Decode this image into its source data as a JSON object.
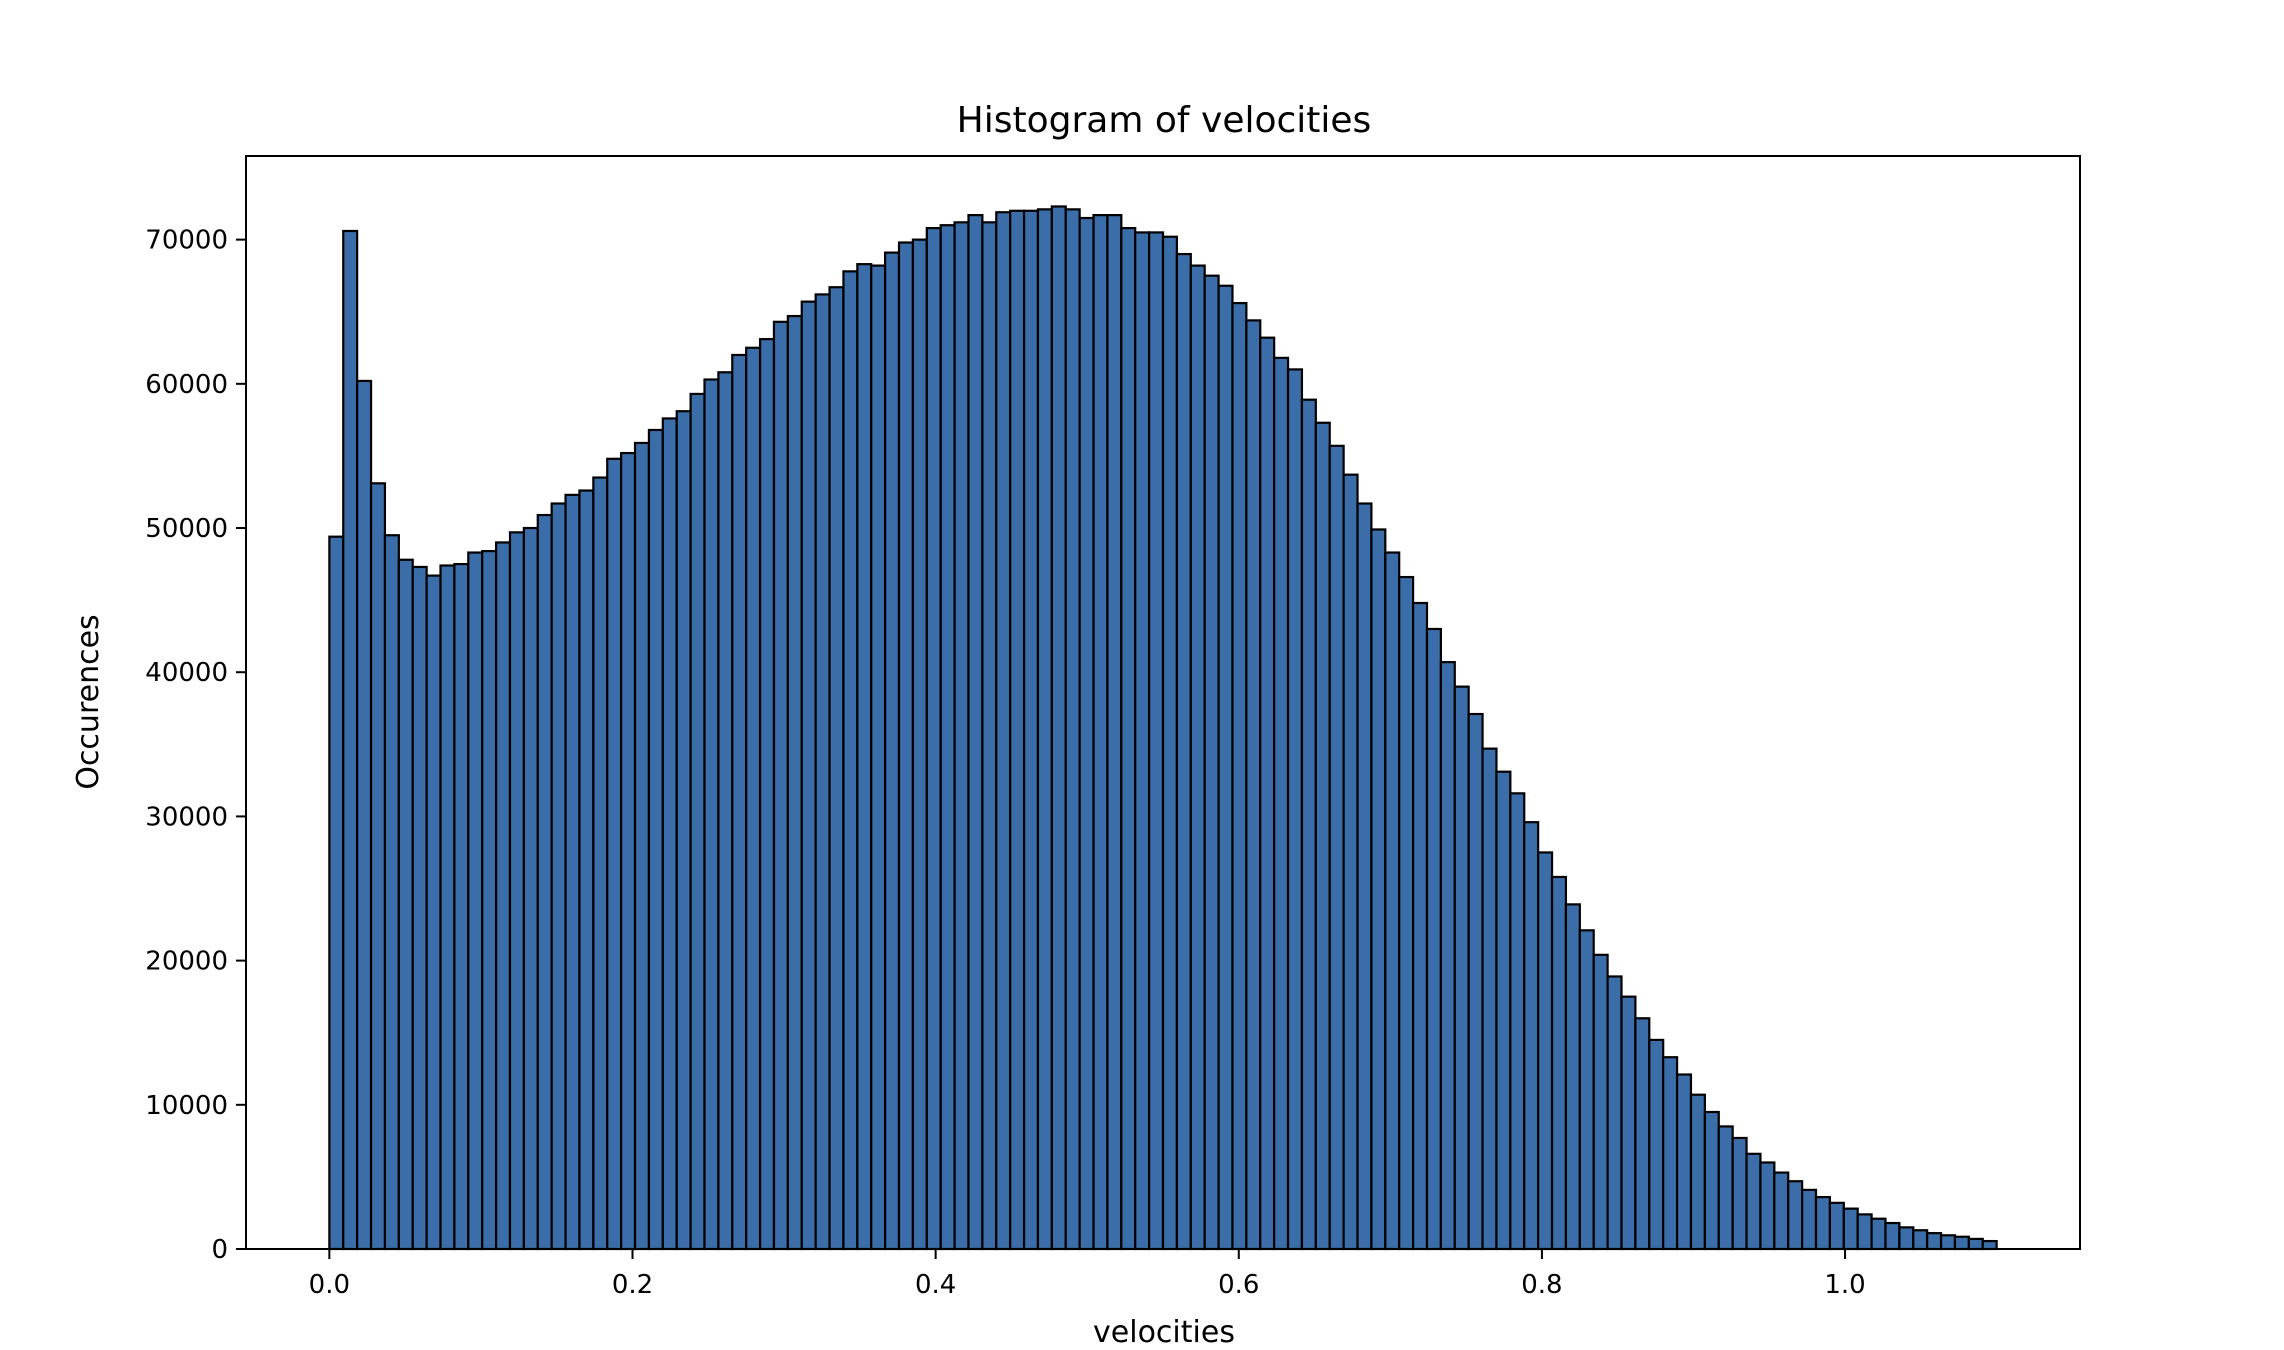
{
  "chart_data": {
    "type": "bar",
    "title": "Histogram of velocities",
    "xlabel": "velocities",
    "ylabel": "Occurences",
    "xlim": [
      -0.055,
      1.155
    ],
    "ylim": [
      0,
      75800
    ],
    "xticks": [
      0.0,
      0.2,
      0.4,
      0.6,
      0.8,
      1.0
    ],
    "xtick_labels": [
      "0.0",
      "0.2",
      "0.4",
      "0.6",
      "0.8",
      "1.0"
    ],
    "yticks": [
      0,
      10000,
      20000,
      30000,
      40000,
      50000,
      60000,
      70000
    ],
    "ytick_labels": [
      "0",
      "10000",
      "20000",
      "30000",
      "40000",
      "50000",
      "60000",
      "70000"
    ],
    "bin_start": 0.0,
    "bin_end": 1.1,
    "bar_color": "#3b6ea8",
    "edge_color": "#000000",
    "grid": false,
    "values": [
      49400,
      70600,
      60200,
      53100,
      49500,
      47800,
      47300,
      46700,
      47400,
      47500,
      48300,
      48400,
      49000,
      49700,
      50000,
      50900,
      51700,
      52300,
      52600,
      53500,
      54800,
      55200,
      55900,
      56800,
      57600,
      58100,
      59300,
      60300,
      60800,
      62000,
      62500,
      63100,
      64300,
      64700,
      65700,
      66200,
      66700,
      67800,
      68300,
      68200,
      69100,
      69800,
      70000,
      70800,
      71000,
      71200,
      71700,
      71200,
      71900,
      72000,
      72000,
      72100,
      72300,
      72100,
      71500,
      71700,
      71700,
      70800,
      70500,
      70500,
      70200,
      69000,
      68200,
      67500,
      66800,
      65600,
      64400,
      63200,
      61800,
      61000,
      58900,
      57300,
      55700,
      53700,
      51700,
      49900,
      48300,
      46600,
      44800,
      43000,
      40700,
      39000,
      37100,
      34700,
      33100,
      31600,
      29600,
      27500,
      25800,
      23900,
      22100,
      20400,
      18900,
      17500,
      16000,
      14500,
      13300,
      12100,
      10700,
      9500,
      8500,
      7700,
      6600,
      6000,
      5300,
      4700,
      4100,
      3600,
      3200,
      2800,
      2400,
      2100,
      1800,
      1500,
      1300,
      1100,
      950,
      850,
      700,
      550
    ]
  }
}
